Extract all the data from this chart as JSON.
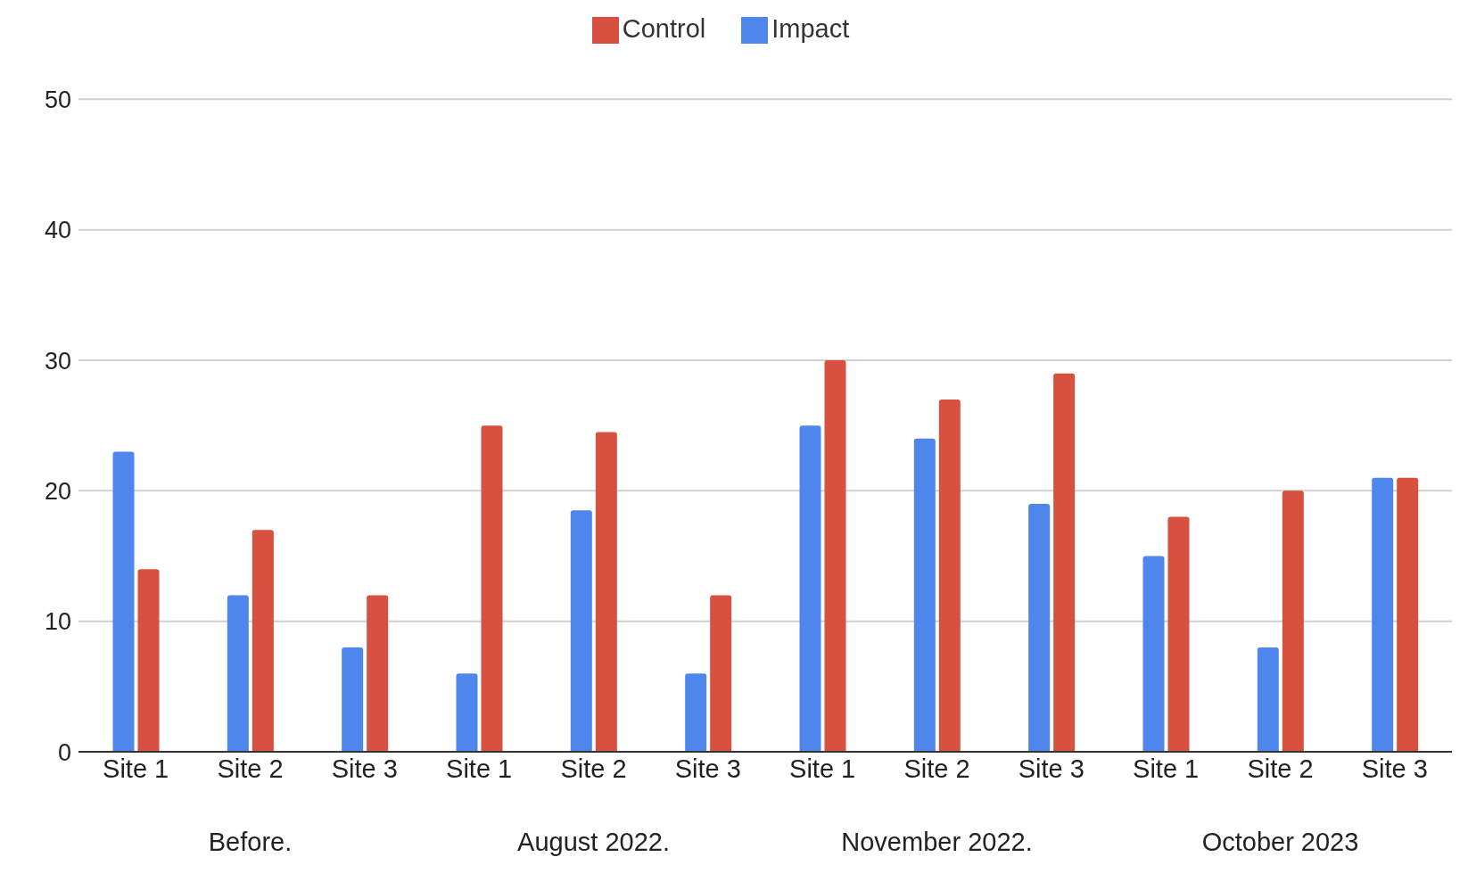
{
  "chart_data": {
    "type": "bar",
    "categories": [
      "Site 1",
      "Site 2",
      "Site 3",
      "Site 1",
      "Site 2",
      "Site 3",
      "Site 1",
      "Site 2",
      "Site 3",
      "Site 1",
      "Site 2",
      "Site 3"
    ],
    "series": [
      {
        "name": "Impact",
        "color": "#4f86ec",
        "values": [
          23,
          12,
          8,
          6,
          18.5,
          6,
          25,
          24,
          19,
          15,
          8,
          21
        ]
      },
      {
        "name": "Control",
        "color": "#d85040",
        "values": [
          14,
          17,
          12,
          25,
          24.5,
          12,
          30,
          27,
          29,
          18,
          20,
          21
        ]
      }
    ],
    "ylim": [
      0,
      50
    ],
    "yticks": [
      0,
      10,
      20,
      30,
      40,
      50
    ],
    "grid": "y",
    "legend": "top",
    "annotations": [
      "Before.",
      "August 2022.",
      "November 2022.",
      "October 2023"
    ]
  }
}
